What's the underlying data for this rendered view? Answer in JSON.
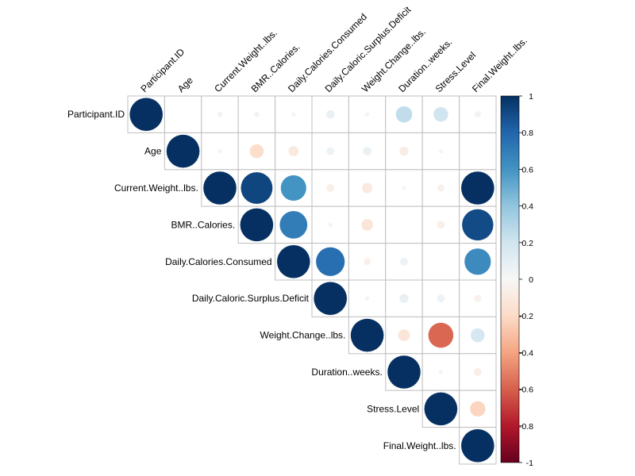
{
  "chart_data": {
    "type": "heatmap",
    "style": "circle correlation matrix (upper triangle)",
    "variables": [
      "Participant.ID",
      "Age",
      "Current.Weight..lbs.",
      "BMR..Calories.",
      "Daily.Calories.Consumed",
      "Daily.Caloric.Surplus.Deficit",
      "Weight.Change..lbs.",
      "Duration..weeks.",
      "Stress.Level",
      "Final.Weight..lbs."
    ],
    "matrix": [
      [
        1,
        0,
        0.03,
        0.03,
        0.02,
        0.07,
        0.02,
        0.25,
        0.2,
        0.04
      ],
      [
        0,
        1,
        0.02,
        -0.18,
        -0.1,
        0.06,
        0.07,
        -0.08,
        0.02,
        0
      ],
      [
        0.03,
        0.02,
        1,
        0.92,
        0.6,
        -0.06,
        -0.1,
        0.02,
        -0.05,
        1
      ],
      [
        0.03,
        -0.18,
        0.92,
        1,
        0.7,
        0.02,
        -0.13,
        0,
        -0.06,
        0.9
      ],
      [
        0.02,
        -0.1,
        0.6,
        0.7,
        1,
        0.76,
        -0.05,
        0.06,
        0,
        0.64
      ],
      [
        0.07,
        0.06,
        -0.06,
        0.02,
        0.76,
        1,
        0.02,
        0.08,
        0.06,
        -0.05
      ],
      [
        0.02,
        0.07,
        -0.1,
        -0.13,
        -0.05,
        0.02,
        1,
        -0.13,
        -0.58,
        0.18
      ],
      [
        0.25,
        -0.08,
        0.02,
        0,
        0.06,
        0.08,
        -0.13,
        1,
        0.02,
        -0.06
      ],
      [
        0.2,
        0.02,
        -0.05,
        -0.06,
        0,
        0.06,
        -0.58,
        0.02,
        1,
        -0.22
      ],
      [
        0.04,
        0,
        1,
        0.9,
        0.64,
        -0.05,
        0.18,
        -0.06,
        -0.22,
        1
      ]
    ],
    "colorbar": {
      "range": [
        -1,
        1
      ],
      "ticks": [
        "-1",
        "-0.8",
        "-0.6",
        "-0.4",
        "-0.2",
        "0",
        "0.2",
        "0.4",
        "0.6",
        "0.8",
        "1"
      ]
    },
    "colors": {
      "positive_strong": "#053061",
      "neutral": "#f7f7f7",
      "negative_strong": "#67001f",
      "grid": "#bfbfbf"
    }
  }
}
